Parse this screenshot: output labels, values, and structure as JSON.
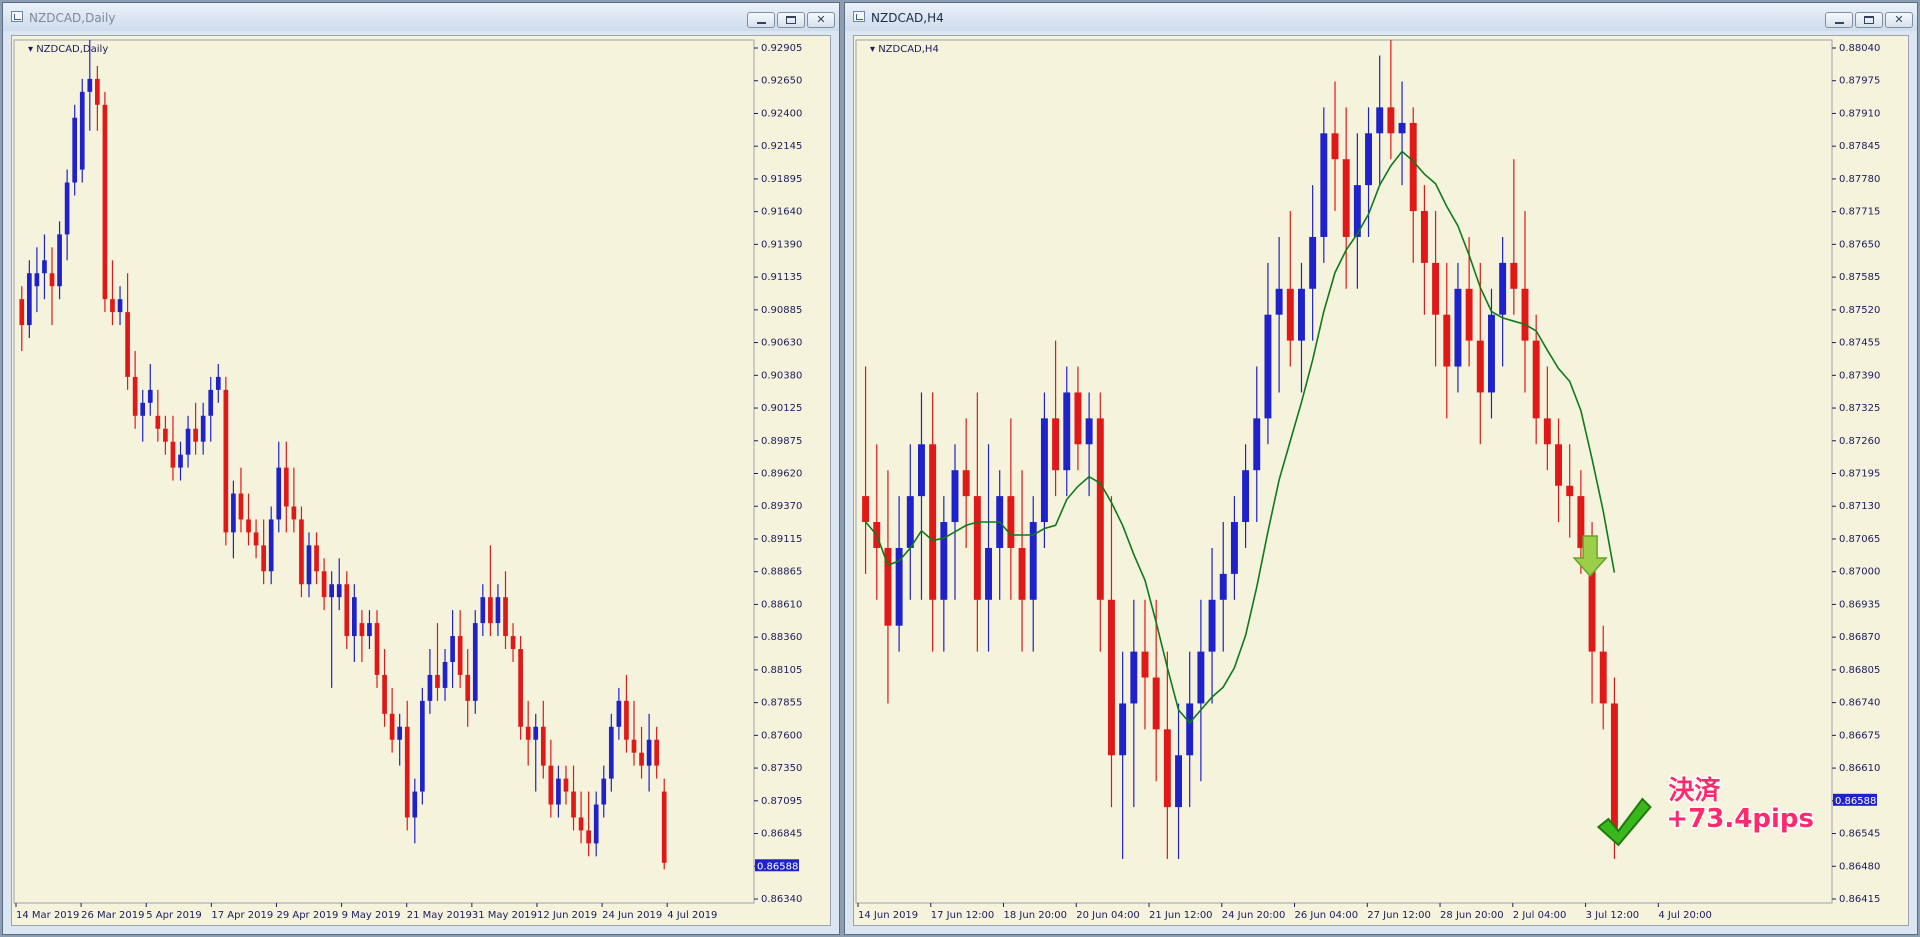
{
  "colors": {
    "bull": "#1e22c8",
    "bear": "#e01818",
    "ma": "#0f7a1a",
    "axis_text": "#1c1c5c",
    "price_box": "#1e22c8",
    "chart_bg": "#f5f3dc"
  },
  "left_window": {
    "title": "NZDCAD,Daily",
    "symbol_label": "NZDCAD,Daily",
    "current_price": "0.86588",
    "y_ticks": [
      "0.92905",
      "0.92650",
      "0.92400",
      "0.92145",
      "0.91895",
      "0.91640",
      "0.91390",
      "0.91135",
      "0.90885",
      "0.90630",
      "0.90380",
      "0.90125",
      "0.89875",
      "0.89620",
      "0.89370",
      "0.89115",
      "0.88865",
      "0.88610",
      "0.88360",
      "0.88105",
      "0.87855",
      "0.87600",
      "0.87350",
      "0.87095",
      "0.86845",
      "0.86588",
      "0.86340"
    ],
    "x_ticks": [
      "14 Mar 2019",
      "26 Mar 2019",
      "5 Apr 2019",
      "17 Apr 2019",
      "29 Apr 2019",
      "9 May 2019",
      "21 May 2019",
      "31 May 2019",
      "12 Jun 2019",
      "24 Jun 2019",
      "4 Jul 2019"
    ]
  },
  "right_window": {
    "title": "NZDCAD,H4",
    "symbol_label": "NZDCAD,H4",
    "current_price": "0.86588",
    "y_ticks": [
      "0.88040",
      "0.87975",
      "0.87910",
      "0.87845",
      "0.87780",
      "0.87715",
      "0.87650",
      "0.87585",
      "0.87520",
      "0.87455",
      "0.87390",
      "0.87325",
      "0.87260",
      "0.87195",
      "0.87130",
      "0.87065",
      "0.87000",
      "0.86935",
      "0.86870",
      "0.86805",
      "0.86740",
      "0.86675",
      "0.86610",
      "0.86588",
      "0.86545",
      "0.86480",
      "0.86415"
    ],
    "x_ticks": [
      "14 Jun 2019",
      "17 Jun 12:00",
      "18 Jun 20:00",
      "20 Jun 04:00",
      "21 Jun 12:00",
      "24 Jun 20:00",
      "26 Jun 04:00",
      "27 Jun 12:00",
      "28 Jun 20:00",
      "2 Jul 04:00",
      "3 Jul 12:00",
      "4 Jul 20:00"
    ],
    "annotation": {
      "line1": "決済",
      "line2": "+73.4pips"
    },
    "entry_arrow_icon": "down-arrow-icon",
    "exit_icon": "checkmark-icon"
  },
  "chart_data": [
    {
      "type": "candlestick",
      "title": "NZDCAD,Daily",
      "ylim": [
        0.8634,
        0.93
      ],
      "ohlc": [
        [
          0.91,
          0.911,
          0.906,
          0.908
        ],
        [
          0.908,
          0.913,
          0.907,
          0.912
        ],
        [
          0.911,
          0.914,
          0.909,
          0.912
        ],
        [
          0.912,
          0.915,
          0.91,
          0.913
        ],
        [
          0.912,
          0.914,
          0.908,
          0.911
        ],
        [
          0.911,
          0.916,
          0.91,
          0.915
        ],
        [
          0.915,
          0.92,
          0.913,
          0.919
        ],
        [
          0.919,
          0.925,
          0.918,
          0.924
        ],
        [
          0.92,
          0.927,
          0.919,
          0.926
        ],
        [
          0.926,
          0.93,
          0.923,
          0.927
        ],
        [
          0.927,
          0.928,
          0.923,
          0.925
        ],
        [
          0.925,
          0.926,
          0.909,
          0.91
        ],
        [
          0.91,
          0.913,
          0.908,
          0.909
        ],
        [
          0.909,
          0.911,
          0.908,
          0.91
        ],
        [
          0.909,
          0.912,
          0.903,
          0.904
        ],
        [
          0.904,
          0.906,
          0.9,
          0.901
        ],
        [
          0.901,
          0.903,
          0.899,
          0.902
        ],
        [
          0.902,
          0.905,
          0.901,
          0.903
        ],
        [
          0.901,
          0.903,
          0.899,
          0.9
        ],
        [
          0.9,
          0.901,
          0.898,
          0.899
        ],
        [
          0.899,
          0.901,
          0.896,
          0.897
        ],
        [
          0.897,
          0.899,
          0.896,
          0.898
        ],
        [
          0.898,
          0.901,
          0.897,
          0.9
        ],
        [
          0.9,
          0.902,
          0.898,
          0.899
        ],
        [
          0.899,
          0.902,
          0.898,
          0.901
        ],
        [
          0.901,
          0.904,
          0.899,
          0.903
        ],
        [
          0.903,
          0.905,
          0.902,
          0.904
        ],
        [
          0.903,
          0.904,
          0.891,
          0.892
        ],
        [
          0.892,
          0.896,
          0.89,
          0.895
        ],
        [
          0.895,
          0.897,
          0.892,
          0.893
        ],
        [
          0.893,
          0.895,
          0.891,
          0.892
        ],
        [
          0.892,
          0.893,
          0.89,
          0.891
        ],
        [
          0.891,
          0.893,
          0.888,
          0.889
        ],
        [
          0.889,
          0.894,
          0.888,
          0.893
        ],
        [
          0.893,
          0.899,
          0.892,
          0.897
        ],
        [
          0.897,
          0.899,
          0.892,
          0.894
        ],
        [
          0.894,
          0.897,
          0.892,
          0.893
        ],
        [
          0.893,
          0.894,
          0.887,
          0.888
        ],
        [
          0.888,
          0.892,
          0.887,
          0.891
        ],
        [
          0.891,
          0.892,
          0.888,
          0.889
        ],
        [
          0.889,
          0.89,
          0.886,
          0.887
        ],
        [
          0.887,
          0.889,
          0.88,
          0.888
        ],
        [
          0.887,
          0.89,
          0.886,
          0.888
        ],
        [
          0.888,
          0.889,
          0.883,
          0.884
        ],
        [
          0.884,
          0.888,
          0.882,
          0.887
        ],
        [
          0.885,
          0.886,
          0.882,
          0.884
        ],
        [
          0.884,
          0.886,
          0.883,
          0.885
        ],
        [
          0.885,
          0.886,
          0.88,
          0.881
        ],
        [
          0.881,
          0.883,
          0.877,
          0.878
        ],
        [
          0.878,
          0.88,
          0.875,
          0.876
        ],
        [
          0.876,
          0.878,
          0.874,
          0.877
        ],
        [
          0.877,
          0.879,
          0.869,
          0.87
        ],
        [
          0.87,
          0.873,
          0.868,
          0.872
        ],
        [
          0.872,
          0.88,
          0.871,
          0.879
        ],
        [
          0.879,
          0.883,
          0.878,
          0.881
        ],
        [
          0.881,
          0.885,
          0.879,
          0.88
        ],
        [
          0.88,
          0.883,
          0.879,
          0.882
        ],
        [
          0.882,
          0.886,
          0.88,
          0.884
        ],
        [
          0.884,
          0.886,
          0.88,
          0.881
        ],
        [
          0.881,
          0.883,
          0.877,
          0.879
        ],
        [
          0.879,
          0.886,
          0.878,
          0.885
        ],
        [
          0.885,
          0.888,
          0.884,
          0.887
        ],
        [
          0.887,
          0.891,
          0.884,
          0.885
        ],
        [
          0.885,
          0.888,
          0.884,
          0.887
        ],
        [
          0.887,
          0.889,
          0.883,
          0.884
        ],
        [
          0.884,
          0.885,
          0.882,
          0.883
        ],
        [
          0.883,
          0.884,
          0.876,
          0.877
        ],
        [
          0.877,
          0.879,
          0.874,
          0.876
        ],
        [
          0.876,
          0.878,
          0.872,
          0.877
        ],
        [
          0.877,
          0.879,
          0.873,
          0.874
        ],
        [
          0.874,
          0.876,
          0.87,
          0.871
        ],
        [
          0.871,
          0.874,
          0.87,
          0.873
        ],
        [
          0.873,
          0.874,
          0.871,
          0.872
        ],
        [
          0.872,
          0.874,
          0.869,
          0.87
        ],
        [
          0.87,
          0.872,
          0.868,
          0.869
        ],
        [
          0.869,
          0.872,
          0.867,
          0.868
        ],
        [
          0.868,
          0.872,
          0.867,
          0.871
        ],
        [
          0.871,
          0.874,
          0.87,
          0.873
        ],
        [
          0.873,
          0.878,
          0.872,
          0.877
        ],
        [
          0.877,
          0.88,
          0.876,
          0.879
        ],
        [
          0.879,
          0.881,
          0.875,
          0.876
        ],
        [
          0.876,
          0.879,
          0.874,
          0.875
        ],
        [
          0.875,
          0.877,
          0.873,
          0.874
        ],
        [
          0.874,
          0.878,
          0.872,
          0.876
        ],
        [
          0.876,
          0.877,
          0.873,
          0.874
        ],
        [
          0.872,
          0.873,
          0.866,
          0.8665
        ]
      ]
    },
    {
      "type": "candlestick",
      "title": "NZDCAD,H4",
      "ylim": [
        0.86415,
        0.8808
      ],
      "ohlc": [
        [
          0.872,
          0.8745,
          0.8705,
          0.8715
        ],
        [
          0.8715,
          0.873,
          0.87,
          0.871
        ],
        [
          0.871,
          0.8725,
          0.868,
          0.8695
        ],
        [
          0.8695,
          0.872,
          0.869,
          0.871
        ],
        [
          0.871,
          0.873,
          0.87,
          0.872
        ],
        [
          0.872,
          0.874,
          0.87,
          0.873
        ],
        [
          0.873,
          0.874,
          0.869,
          0.87
        ],
        [
          0.87,
          0.872,
          0.869,
          0.8715
        ],
        [
          0.8715,
          0.873,
          0.87,
          0.8725
        ],
        [
          0.8725,
          0.8735,
          0.871,
          0.872
        ],
        [
          0.872,
          0.874,
          0.869,
          0.87
        ],
        [
          0.87,
          0.873,
          0.869,
          0.871
        ],
        [
          0.871,
          0.8725,
          0.87,
          0.872
        ],
        [
          0.872,
          0.8735,
          0.87,
          0.871
        ],
        [
          0.871,
          0.8725,
          0.869,
          0.87
        ],
        [
          0.87,
          0.872,
          0.869,
          0.8715
        ],
        [
          0.8715,
          0.874,
          0.871,
          0.8735
        ],
        [
          0.8735,
          0.875,
          0.872,
          0.8725
        ],
        [
          0.8725,
          0.8745,
          0.872,
          0.874
        ],
        [
          0.874,
          0.8745,
          0.8725,
          0.873
        ],
        [
          0.873,
          0.874,
          0.872,
          0.8735
        ],
        [
          0.8735,
          0.874,
          0.869,
          0.87
        ],
        [
          0.87,
          0.872,
          0.866,
          0.867
        ],
        [
          0.867,
          0.869,
          0.865,
          0.868
        ],
        [
          0.868,
          0.87,
          0.866,
          0.869
        ],
        [
          0.869,
          0.87,
          0.8675,
          0.8685
        ],
        [
          0.8685,
          0.87,
          0.8665,
          0.8675
        ],
        [
          0.8675,
          0.869,
          0.865,
          0.866
        ],
        [
          0.866,
          0.868,
          0.865,
          0.867
        ],
        [
          0.867,
          0.869,
          0.866,
          0.868
        ],
        [
          0.868,
          0.87,
          0.8665,
          0.869
        ],
        [
          0.869,
          0.871,
          0.868,
          0.87
        ],
        [
          0.87,
          0.8715,
          0.869,
          0.8705
        ],
        [
          0.8705,
          0.872,
          0.87,
          0.8715
        ],
        [
          0.8715,
          0.873,
          0.871,
          0.8725
        ],
        [
          0.8725,
          0.8745,
          0.8715,
          0.8735
        ],
        [
          0.8735,
          0.8765,
          0.873,
          0.8755
        ],
        [
          0.8755,
          0.877,
          0.874,
          0.876
        ],
        [
          0.876,
          0.8775,
          0.8745,
          0.875
        ],
        [
          0.875,
          0.8765,
          0.874,
          0.876
        ],
        [
          0.876,
          0.878,
          0.875,
          0.877
        ],
        [
          0.877,
          0.8795,
          0.8765,
          0.879
        ],
        [
          0.879,
          0.88,
          0.8775,
          0.8785
        ],
        [
          0.8785,
          0.8795,
          0.876,
          0.877
        ],
        [
          0.877,
          0.879,
          0.876,
          0.878
        ],
        [
          0.878,
          0.8795,
          0.877,
          0.879
        ],
        [
          0.879,
          0.8805,
          0.878,
          0.8795
        ],
        [
          0.8795,
          0.8808,
          0.8785,
          0.879
        ],
        [
          0.879,
          0.88,
          0.878,
          0.8792
        ],
        [
          0.8792,
          0.8795,
          0.8765,
          0.8775
        ],
        [
          0.8775,
          0.878,
          0.8755,
          0.8765
        ],
        [
          0.8765,
          0.8775,
          0.8745,
          0.8755
        ],
        [
          0.8755,
          0.8765,
          0.8735,
          0.8745
        ],
        [
          0.8745,
          0.8765,
          0.874,
          0.876
        ],
        [
          0.876,
          0.877,
          0.8745,
          0.875
        ],
        [
          0.875,
          0.8765,
          0.873,
          0.874
        ],
        [
          0.874,
          0.876,
          0.8735,
          0.8755
        ],
        [
          0.8755,
          0.877,
          0.8745,
          0.8765
        ],
        [
          0.8765,
          0.8785,
          0.8755,
          0.876
        ],
        [
          0.876,
          0.8775,
          0.874,
          0.875
        ],
        [
          0.875,
          0.8755,
          0.873,
          0.8735
        ],
        [
          0.8735,
          0.8745,
          0.8725,
          0.873
        ],
        [
          0.873,
          0.8735,
          0.8715,
          0.8722
        ],
        [
          0.8722,
          0.873,
          0.8712,
          0.872
        ],
        [
          0.872,
          0.8725,
          0.8705,
          0.871
        ],
        [
          0.871,
          0.8715,
          0.868,
          0.869
        ],
        [
          0.869,
          0.8695,
          0.8675,
          0.868
        ],
        [
          0.868,
          0.8685,
          0.865,
          0.8655
        ]
      ]
    }
  ]
}
